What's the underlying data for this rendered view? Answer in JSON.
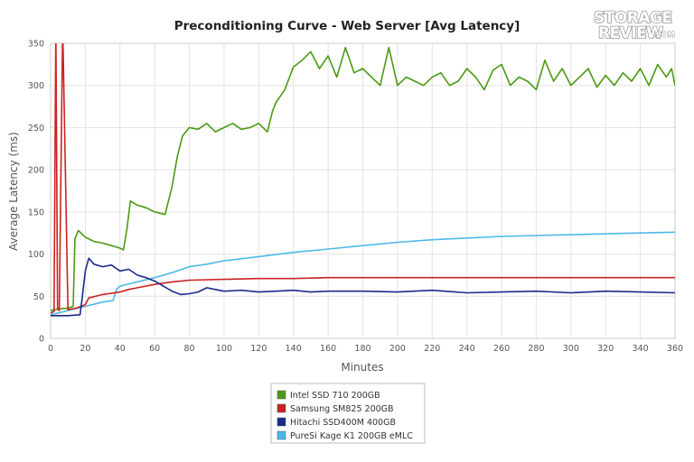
{
  "logo": {
    "line1": "STORAGE",
    "line2": "REVIEW",
    "suffix": ".COM"
  },
  "chart_data": {
    "type": "line",
    "title": "Preconditioning Curve - Web Server [Avg Latency]",
    "xlabel": "Minutes",
    "ylabel": "Average Latency (ms)",
    "xlim": [
      0,
      360
    ],
    "ylim": [
      0,
      350
    ],
    "xticks": [
      0,
      20,
      40,
      60,
      80,
      100,
      120,
      140,
      160,
      180,
      200,
      220,
      240,
      260,
      280,
      300,
      320,
      340,
      360
    ],
    "yticks": [
      0,
      50,
      100,
      150,
      200,
      250,
      300,
      350
    ],
    "grid": "both",
    "legend_position": "bottom-center",
    "series": [
      {
        "name": "Intel SSD 710 200GB",
        "color": "#4a9a13",
        "x": [
          0,
          5,
          10,
          13,
          14,
          16,
          20,
          25,
          30,
          35,
          40,
          42,
          44,
          46,
          50,
          55,
          60,
          64,
          66,
          70,
          73,
          76,
          80,
          85,
          90,
          95,
          100,
          105,
          110,
          115,
          120,
          125,
          128,
          130,
          135,
          140,
          145,
          150,
          155,
          160,
          165,
          170,
          175,
          180,
          185,
          190,
          195,
          200,
          205,
          210,
          215,
          220,
          225,
          230,
          235,
          240,
          245,
          250,
          255,
          260,
          265,
          270,
          275,
          280,
          285,
          290,
          295,
          300,
          305,
          310,
          315,
          320,
          325,
          330,
          335,
          340,
          345,
          350,
          355,
          358,
          360
        ],
        "y": [
          33,
          35,
          36,
          38,
          118,
          128,
          120,
          115,
          113,
          110,
          107,
          105,
          130,
          163,
          158,
          155,
          150,
          148,
          147,
          180,
          215,
          240,
          250,
          248,
          255,
          245,
          250,
          255,
          248,
          250,
          255,
          245,
          270,
          280,
          295,
          322,
          330,
          340,
          320,
          335,
          310,
          345,
          315,
          320,
          310,
          300,
          345,
          300,
          310,
          305,
          300,
          310,
          315,
          300,
          305,
          320,
          310,
          295,
          318,
          325,
          300,
          310,
          305,
          295,
          330,
          305,
          320,
          300,
          310,
          320,
          298,
          312,
          300,
          315,
          305,
          320,
          300,
          325,
          310,
          320,
          300
        ]
      },
      {
        "name": "Samsung SM825 200GB",
        "color": "#cc2222",
        "x": [
          0,
          2,
          3,
          4,
          5,
          7,
          10,
          15,
          20,
          22,
          30,
          40,
          45,
          50,
          60,
          70,
          80,
          100,
          120,
          140,
          160,
          200,
          240,
          280,
          320,
          360
        ],
        "y": [
          30,
          32,
          370,
          35,
          33,
          370,
          34,
          36,
          40,
          48,
          52,
          55,
          58,
          60,
          64,
          67,
          69,
          70,
          71,
          71,
          72,
          72,
          72,
          72,
          72,
          72
        ]
      },
      {
        "name": "Hitachi SSD400M 400GB",
        "color": "#1a2a8a",
        "x": [
          0,
          10,
          17,
          18,
          20,
          22,
          25,
          30,
          35,
          40,
          45,
          50,
          55,
          60,
          65,
          70,
          75,
          80,
          85,
          90,
          95,
          100,
          110,
          120,
          130,
          140,
          150,
          160,
          180,
          200,
          220,
          240,
          260,
          280,
          300,
          320,
          340,
          360
        ],
        "y": [
          27,
          27,
          28,
          45,
          80,
          95,
          88,
          85,
          87,
          80,
          82,
          75,
          72,
          68,
          62,
          56,
          52,
          53,
          55,
          60,
          58,
          56,
          57,
          55,
          56,
          57,
          55,
          56,
          56,
          55,
          57,
          54,
          55,
          56,
          54,
          56,
          55,
          54
        ]
      },
      {
        "name": "PureSi Kage K1 200GB eMLC",
        "color": "#4db8ea",
        "x": [
          0,
          10,
          20,
          30,
          36,
          38,
          40,
          50,
          60,
          70,
          80,
          90,
          100,
          120,
          140,
          160,
          180,
          200,
          220,
          240,
          260,
          280,
          300,
          320,
          340,
          360
        ],
        "y": [
          28,
          33,
          38,
          43,
          45,
          58,
          62,
          67,
          72,
          78,
          85,
          88,
          92,
          97,
          102,
          106,
          110,
          114,
          117,
          119,
          121,
          122,
          123,
          124,
          125,
          126
        ]
      }
    ]
  }
}
